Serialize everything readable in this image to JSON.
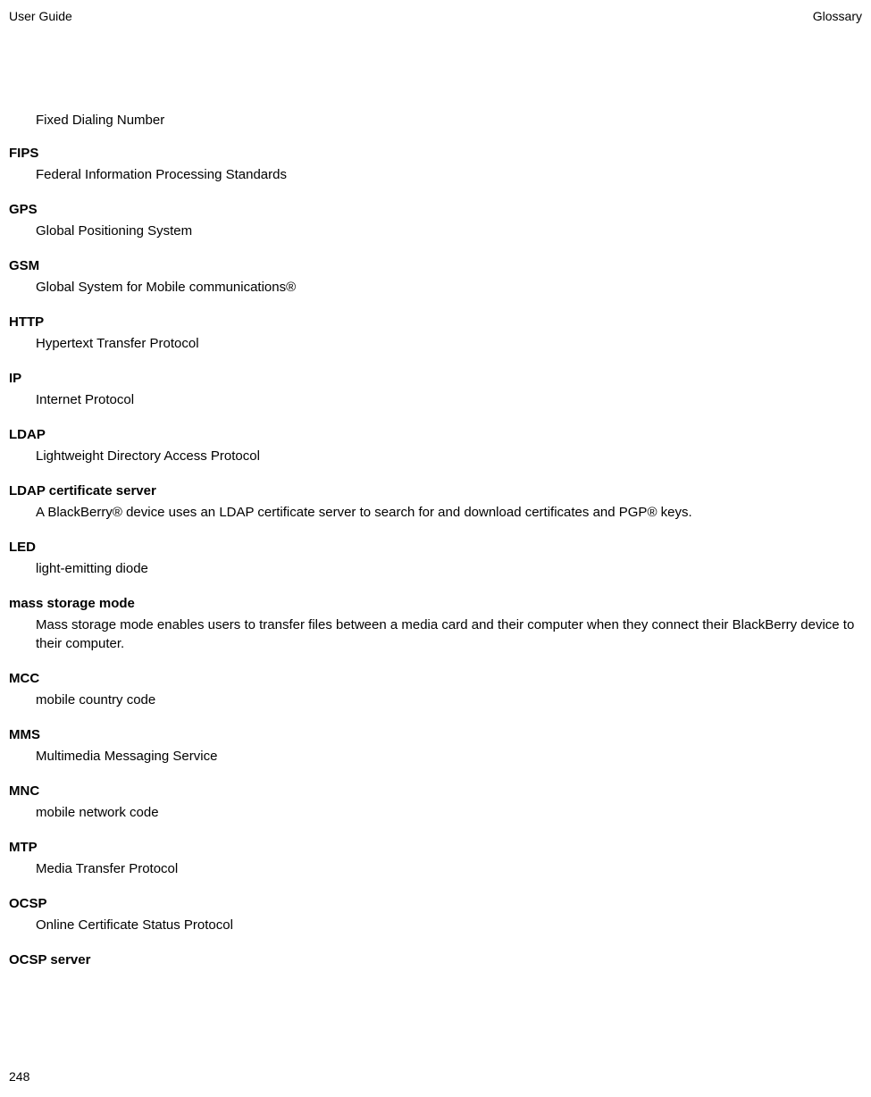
{
  "header": {
    "left": "User Guide",
    "right": "Glossary"
  },
  "firstDefinition": "Fixed Dialing Number",
  "entries": [
    {
      "term": "FIPS",
      "definition": "Federal Information Processing Standards"
    },
    {
      "term": "GPS",
      "definition": "Global Positioning System"
    },
    {
      "term": "GSM",
      "definition": "Global System for Mobile communications®"
    },
    {
      "term": "HTTP",
      "definition": "Hypertext Transfer Protocol"
    },
    {
      "term": "IP",
      "definition": "Internet Protocol"
    },
    {
      "term": "LDAP",
      "definition": "Lightweight Directory Access Protocol"
    },
    {
      "term": "LDAP certificate server",
      "definition": "A BlackBerry® device uses an LDAP certificate server to search for and download certificates and PGP® keys."
    },
    {
      "term": "LED",
      "definition": "light-emitting diode"
    },
    {
      "term": "mass storage mode",
      "definition": "Mass storage mode enables users to transfer files between a media card and their computer when they connect their BlackBerry device to their computer."
    },
    {
      "term": "MCC",
      "definition": "mobile country code"
    },
    {
      "term": "MMS",
      "definition": "Multimedia Messaging Service"
    },
    {
      "term": "MNC",
      "definition": "mobile network code"
    },
    {
      "term": "MTP",
      "definition": "Media Transfer Protocol"
    },
    {
      "term": "OCSP",
      "definition": "Online Certificate Status Protocol"
    },
    {
      "term": "OCSP server",
      "definition": ""
    }
  ],
  "pageNumber": "248"
}
